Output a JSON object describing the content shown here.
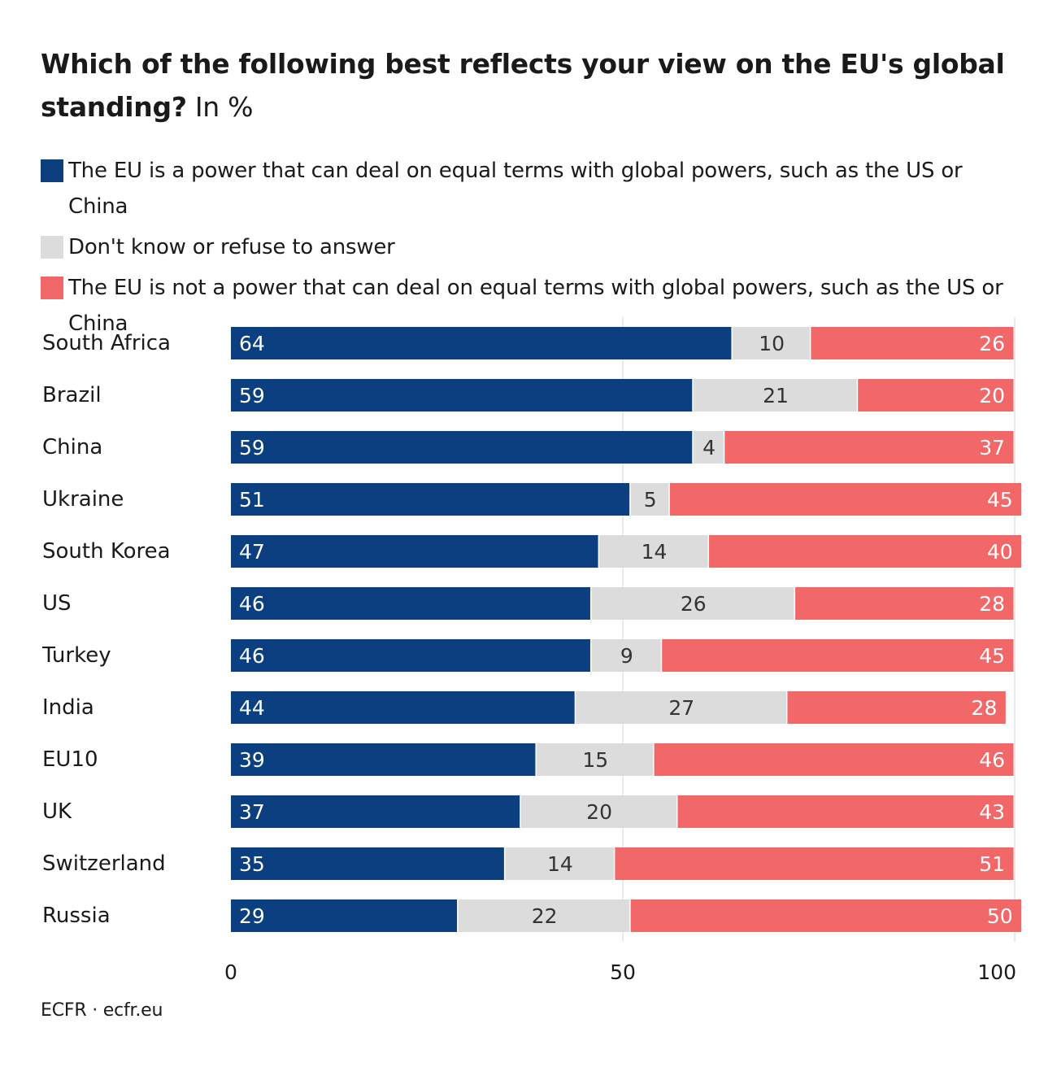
{
  "title": {
    "main": "Which of the following best reflects your view on the EU's global standing?",
    "unit": "In %"
  },
  "colors": {
    "positive": "#0b3f80",
    "neutral": "#dcdcdc",
    "negative": "#f26868"
  },
  "source": "ECFR · ecfr.eu",
  "chart_data": {
    "type": "bar",
    "orientation": "horizontal",
    "stacked": true,
    "categories": [
      "South Africa",
      "Brazil",
      "China",
      "Ukraine",
      "South Korea",
      "US",
      "Turkey",
      "India",
      "EU10",
      "UK",
      "Switzerland",
      "Russia"
    ],
    "series": [
      {
        "name": "The EU is a power that can deal on equal terms with global powers, such as the US or China",
        "values": [
          64,
          59,
          59,
          51,
          47,
          46,
          46,
          44,
          39,
          37,
          35,
          29
        ]
      },
      {
        "name": "Don't know or refuse to answer",
        "values": [
          10,
          21,
          4,
          5,
          14,
          26,
          9,
          27,
          15,
          20,
          14,
          22
        ]
      },
      {
        "name": "The EU is not a power that can deal on equal terms with global powers, such as the US or China",
        "values": [
          26,
          20,
          37,
          45,
          40,
          28,
          45,
          28,
          46,
          43,
          51,
          50
        ]
      }
    ],
    "xlim": [
      0,
      100
    ],
    "xticks": [
      "0",
      "50",
      "100"
    ],
    "grid": true,
    "legend": "top",
    "data_labels": true
  }
}
